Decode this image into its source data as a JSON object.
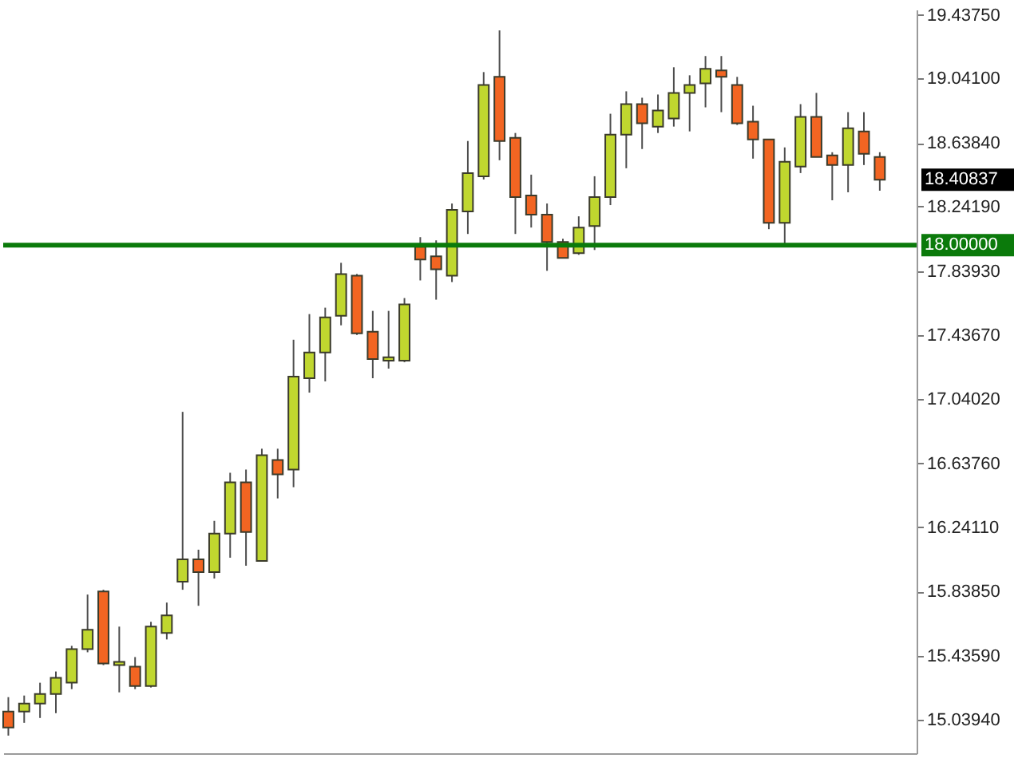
{
  "chart_data": {
    "type": "candlestick",
    "categories": [
      null,
      null,
      null,
      null,
      null,
      null,
      null,
      null,
      null,
      null,
      null,
      null,
      null,
      null,
      null,
      null,
      null,
      null,
      null,
      null,
      null,
      null,
      null,
      null,
      null,
      null,
      null,
      null,
      null,
      null,
      null,
      null,
      null,
      null,
      null,
      null,
      null,
      null,
      null,
      null,
      null,
      null,
      null,
      null,
      null,
      null,
      null,
      null,
      null,
      null,
      null,
      null,
      null,
      null,
      null,
      null
    ],
    "ohlc": [
      [
        15.09,
        15.18,
        14.94,
        14.99
      ],
      [
        15.09,
        15.19,
        15.02,
        15.14
      ],
      [
        15.14,
        15.27,
        15.05,
        15.2
      ],
      [
        15.2,
        15.34,
        15.08,
        15.3
      ],
      [
        15.27,
        15.5,
        15.23,
        15.48
      ],
      [
        15.48,
        15.82,
        15.46,
        15.6
      ],
      [
        15.84,
        15.85,
        15.38,
        15.39
      ],
      [
        15.38,
        15.62,
        15.21,
        15.4
      ],
      [
        15.37,
        15.43,
        15.23,
        15.25
      ],
      [
        15.25,
        15.65,
        15.24,
        15.62
      ],
      [
        15.58,
        15.77,
        15.54,
        15.69
      ],
      [
        15.9,
        16.96,
        15.85,
        16.04
      ],
      [
        16.04,
        16.1,
        15.75,
        15.96
      ],
      [
        15.96,
        16.28,
        15.92,
        16.2
      ],
      [
        16.2,
        16.58,
        16.05,
        16.52
      ],
      [
        16.52,
        16.6,
        16.0,
        16.21
      ],
      [
        16.03,
        16.73,
        16.03,
        16.69
      ],
      [
        16.66,
        16.73,
        16.42,
        16.57
      ],
      [
        16.6,
        17.41,
        16.49,
        17.18
      ],
      [
        17.17,
        17.57,
        17.08,
        17.33
      ],
      [
        17.33,
        17.61,
        17.15,
        17.55
      ],
      [
        17.56,
        17.89,
        17.5,
        17.82
      ],
      [
        17.81,
        17.82,
        17.44,
        17.45
      ],
      [
        17.46,
        17.59,
        17.17,
        17.29
      ],
      [
        17.28,
        17.59,
        17.23,
        17.3
      ],
      [
        17.28,
        17.67,
        17.27,
        17.63
      ],
      [
        17.99,
        18.05,
        17.78,
        17.91
      ],
      [
        17.93,
        18.03,
        17.66,
        17.85
      ],
      [
        17.81,
        18.26,
        17.77,
        18.22
      ],
      [
        18.21,
        18.65,
        18.07,
        18.45
      ],
      [
        18.43,
        19.08,
        18.41,
        19.0
      ],
      [
        19.05,
        19.34,
        18.53,
        18.65
      ],
      [
        18.67,
        18.7,
        18.07,
        18.3
      ],
      [
        18.31,
        18.44,
        18.11,
        18.19
      ],
      [
        18.19,
        18.26,
        17.84,
        18.02
      ],
      [
        18.02,
        18.04,
        17.92,
        17.92
      ],
      [
        17.95,
        18.18,
        17.94,
        18.11
      ],
      [
        18.12,
        18.43,
        17.97,
        18.3
      ],
      [
        18.3,
        18.82,
        18.25,
        18.69
      ],
      [
        18.69,
        18.96,
        18.48,
        18.88
      ],
      [
        18.88,
        18.92,
        18.6,
        18.76
      ],
      [
        18.74,
        18.94,
        18.7,
        18.84
      ],
      [
        18.79,
        19.11,
        18.74,
        18.95
      ],
      [
        18.95,
        19.06,
        18.71,
        19.0
      ],
      [
        19.01,
        19.18,
        18.86,
        19.1
      ],
      [
        19.09,
        19.18,
        18.83,
        19.05
      ],
      [
        19.0,
        19.05,
        18.75,
        18.76
      ],
      [
        18.77,
        18.87,
        18.54,
        18.66
      ],
      [
        18.66,
        18.66,
        18.1,
        18.14
      ],
      [
        18.14,
        18.61,
        18.0,
        18.52
      ],
      [
        18.49,
        18.88,
        18.45,
        18.8
      ],
      [
        18.8,
        18.95,
        18.55,
        18.55
      ],
      [
        18.56,
        18.58,
        18.28,
        18.5
      ],
      [
        18.5,
        18.83,
        18.33,
        18.73
      ],
      [
        18.71,
        18.83,
        18.5,
        18.57
      ],
      [
        18.55,
        18.58,
        18.34,
        18.40837
      ]
    ],
    "colors": [
      "#f26522",
      "#c0d72f",
      "#c0d72f",
      "#c0d72f",
      "#c0d72f",
      "#c0d72f",
      "#f26522",
      "#c0d72f",
      "#f26522",
      "#c0d72f",
      "#c0d72f",
      "#c0d72f",
      "#f26522",
      "#c0d72f",
      "#c0d72f",
      "#f26522",
      "#c0d72f",
      "#f26522",
      "#c0d72f",
      "#c0d72f",
      "#c0d72f",
      "#c0d72f",
      "#f26522",
      "#f26522",
      "#c0d72f",
      "#c0d72f",
      "#f26522",
      "#f26522",
      "#c0d72f",
      "#c0d72f",
      "#c0d72f",
      "#f26522",
      "#f26522",
      "#f26522",
      "#f26522",
      "#f26522",
      "#c0d72f",
      "#c0d72f",
      "#c0d72f",
      "#c0d72f",
      "#f26522",
      "#c0d72f",
      "#c0d72f",
      "#c0d72f",
      "#c0d72f",
      "#f26522",
      "#f26522",
      "#f26522",
      "#f26522",
      "#c0d72f",
      "#c0d72f",
      "#f26522",
      "#f26522",
      "#c0d72f",
      "#f26522",
      "#f26522"
    ],
    "ylim": [
      14.83,
      19.47
    ],
    "yticks": [
      {
        "value": 15.0394,
        "label": "15.03940"
      },
      {
        "value": 15.4359,
        "label": "15.43590"
      },
      {
        "value": 15.8385,
        "label": "15.83850"
      },
      {
        "value": 16.2411,
        "label": "16.24110"
      },
      {
        "value": 16.6376,
        "label": "16.63760"
      },
      {
        "value": 17.0402,
        "label": "17.04020"
      },
      {
        "value": 17.4367,
        "label": "17.43670"
      },
      {
        "value": 17.8393,
        "label": "17.83930"
      },
      {
        "value": 18.2419,
        "label": "18.24190"
      },
      {
        "value": 18.6384,
        "label": "18.63840"
      },
      {
        "value": 19.041,
        "label": "19.04100"
      },
      {
        "value": 19.4375,
        "label": "19.43750"
      }
    ],
    "ref_lines": [
      {
        "axis": "y",
        "value": 18,
        "label": "18.00000",
        "color": "#0b7a0b"
      }
    ],
    "annotations": [
      "18.40837"
    ],
    "tick_labels": "y"
  }
}
